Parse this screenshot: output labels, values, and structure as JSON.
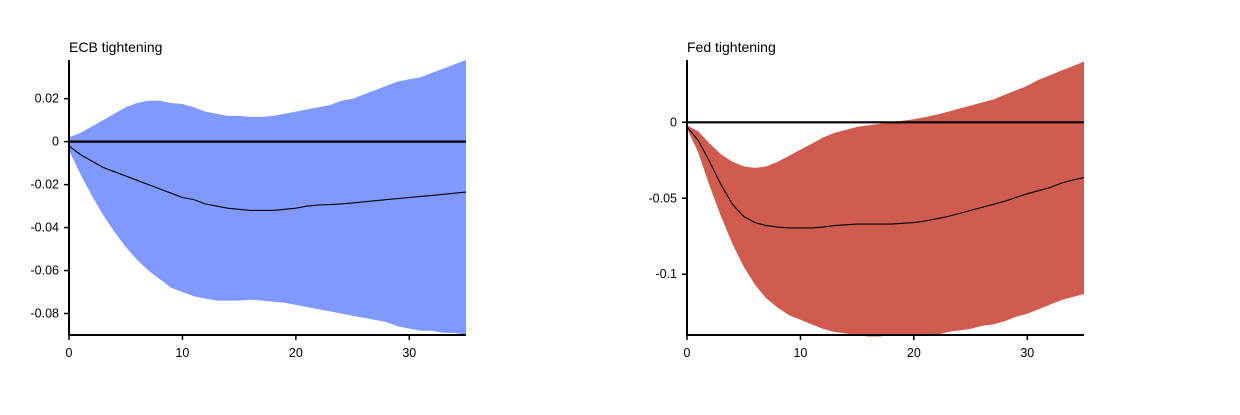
{
  "chart_data": [
    {
      "type": "area",
      "title": "ECB tightening",
      "xlabel": "",
      "ylabel": "",
      "xlim": [
        0,
        35
      ],
      "ylim": [
        -0.09,
        0.038
      ],
      "x_ticks": [
        0,
        10,
        20,
        30
      ],
      "x_tick_labels": [
        "0",
        "10",
        "20",
        "30"
      ],
      "y_ticks": [
        0.02,
        0,
        -0.02,
        -0.04,
        -0.06,
        -0.08
      ],
      "y_tick_labels": [
        "0.02",
        "0",
        "-0.02",
        "-0.04",
        "-0.06",
        "-0.08"
      ],
      "grid": false,
      "zero_line": true,
      "band_color": "#7f99ff",
      "line_color": "#000000",
      "x": [
        0,
        1,
        2,
        3,
        4,
        5,
        6,
        7,
        8,
        9,
        10,
        11,
        12,
        13,
        14,
        15,
        16,
        17,
        18,
        19,
        20,
        21,
        22,
        23,
        24,
        25,
        26,
        27,
        28,
        29,
        30,
        31,
        32,
        33,
        34,
        35
      ],
      "series": [
        {
          "role": "median",
          "values": [
            -0.002,
            -0.006,
            -0.009,
            -0.012,
            -0.014,
            -0.016,
            -0.018,
            -0.02,
            -0.022,
            -0.024,
            -0.026,
            -0.027,
            -0.029,
            -0.03,
            -0.031,
            -0.0315,
            -0.032,
            -0.032,
            -0.032,
            -0.0315,
            -0.031,
            -0.03,
            -0.0295,
            -0.0293,
            -0.029,
            -0.0285,
            -0.028,
            -0.0275,
            -0.027,
            -0.0265,
            -0.026,
            -0.0255,
            -0.025,
            -0.0245,
            -0.024,
            -0.0235
          ]
        },
        {
          "role": "upper",
          "values": [
            0.002,
            0.004,
            0.007,
            0.01,
            0.013,
            0.016,
            0.018,
            0.019,
            0.019,
            0.018,
            0.0175,
            0.016,
            0.014,
            0.013,
            0.012,
            0.012,
            0.0115,
            0.0115,
            0.012,
            0.013,
            0.014,
            0.015,
            0.016,
            0.017,
            0.019,
            0.02,
            0.022,
            0.024,
            0.026,
            0.028,
            0.029,
            0.03,
            0.032,
            0.034,
            0.036,
            0.038
          ]
        },
        {
          "role": "lower",
          "values": [
            -0.004,
            -0.015,
            -0.025,
            -0.034,
            -0.042,
            -0.049,
            -0.055,
            -0.06,
            -0.064,
            -0.068,
            -0.07,
            -0.072,
            -0.073,
            -0.074,
            -0.074,
            -0.074,
            -0.0735,
            -0.074,
            -0.0745,
            -0.075,
            -0.076,
            -0.077,
            -0.078,
            -0.079,
            -0.08,
            -0.081,
            -0.082,
            -0.083,
            -0.084,
            -0.086,
            -0.087,
            -0.088,
            -0.088,
            -0.089,
            -0.089,
            -0.09
          ]
        }
      ]
    },
    {
      "type": "area",
      "title": "Fed tightening",
      "xlabel": "",
      "ylabel": "",
      "xlim": [
        0,
        35
      ],
      "ylim": [
        -0.14,
        0.041
      ],
      "x_ticks": [
        0,
        10,
        20,
        30
      ],
      "x_tick_labels": [
        "0",
        "10",
        "20",
        "30"
      ],
      "y_ticks": [
        0,
        -0.05,
        -0.1
      ],
      "y_tick_labels": [
        "0",
        "-0.05",
        "-0.1"
      ],
      "grid": false,
      "zero_line": true,
      "band_color": "#d05b4f",
      "line_color": "#000000",
      "x": [
        0,
        1,
        2,
        3,
        4,
        5,
        6,
        7,
        8,
        9,
        10,
        11,
        12,
        13,
        14,
        15,
        16,
        17,
        18,
        19,
        20,
        21,
        22,
        23,
        24,
        25,
        26,
        27,
        28,
        29,
        30,
        31,
        32,
        33,
        34,
        35
      ],
      "series": [
        {
          "role": "median",
          "values": [
            -0.003,
            -0.012,
            -0.026,
            -0.041,
            -0.054,
            -0.062,
            -0.066,
            -0.068,
            -0.069,
            -0.0695,
            -0.0695,
            -0.0695,
            -0.069,
            -0.068,
            -0.0675,
            -0.067,
            -0.067,
            -0.067,
            -0.067,
            -0.0665,
            -0.066,
            -0.065,
            -0.0635,
            -0.062,
            -0.06,
            -0.058,
            -0.056,
            -0.054,
            -0.052,
            -0.0495,
            -0.047,
            -0.045,
            -0.043,
            -0.04,
            -0.038,
            -0.0365
          ]
        },
        {
          "role": "upper",
          "values": [
            -0.002,
            -0.006,
            -0.014,
            -0.021,
            -0.026,
            -0.029,
            -0.03,
            -0.029,
            -0.026,
            -0.022,
            -0.018,
            -0.014,
            -0.01,
            -0.007,
            -0.005,
            -0.003,
            -0.002,
            -0.001,
            0.0,
            0.001,
            0.002,
            0.0035,
            0.005,
            0.007,
            0.009,
            0.011,
            0.013,
            0.015,
            0.018,
            0.021,
            0.024,
            0.028,
            0.031,
            0.034,
            0.037,
            0.04
          ]
        },
        {
          "role": "lower",
          "values": [
            -0.004,
            -0.02,
            -0.042,
            -0.062,
            -0.08,
            -0.095,
            -0.107,
            -0.116,
            -0.122,
            -0.127,
            -0.13,
            -0.133,
            -0.136,
            -0.138,
            -0.139,
            -0.14,
            -0.141,
            -0.141,
            -0.14,
            -0.14,
            -0.14,
            -0.14,
            -0.14,
            -0.138,
            -0.137,
            -0.136,
            -0.134,
            -0.133,
            -0.131,
            -0.128,
            -0.126,
            -0.123,
            -0.12,
            -0.117,
            -0.115,
            -0.113
          ]
        }
      ]
    }
  ]
}
